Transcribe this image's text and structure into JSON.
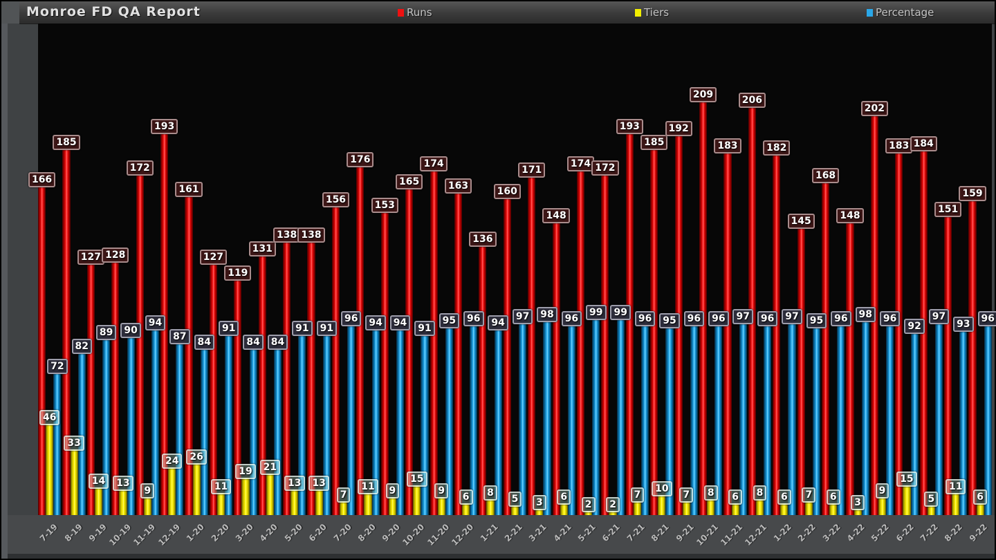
{
  "header": {
    "title": "Monroe FD QA Report",
    "legend": [
      {
        "label": "Runs",
        "color": "#ee1111"
      },
      {
        "label": "Tiers",
        "color": "#f2ee00"
      },
      {
        "label": "Percentage",
        "color": "#2aa7e8"
      }
    ]
  },
  "chart_data": {
    "type": "bar",
    "title": "Monroe FD QA Report",
    "xlabel": "",
    "ylabel": "",
    "grid": false,
    "legend_position": "top",
    "value_labels": true,
    "ylim": [
      0,
      248
    ],
    "categories": [
      "7-19",
      "8-19",
      "9-19",
      "10-19",
      "11-19",
      "12-19",
      "1-20",
      "2-20",
      "3-20",
      "4-20",
      "5-20",
      "6-20",
      "7-20",
      "8-20",
      "9-20",
      "10-20",
      "11-20",
      "12-20",
      "1-21",
      "2-21",
      "3-21",
      "4-21",
      "5-21",
      "6-21",
      "7-21",
      "8-21",
      "9-21",
      "10-21",
      "11-21",
      "12-21",
      "1-22",
      "2-22",
      "3-22",
      "4-22",
      "5-22",
      "6-22",
      "7-22",
      "8-22",
      "9-22"
    ],
    "series": [
      {
        "name": "Runs",
        "color": "#ee1111",
        "values": [
          166,
          185,
          127,
          128,
          172,
          193,
          161,
          127,
          119,
          131,
          138,
          138,
          156,
          176,
          153,
          165,
          174,
          163,
          136,
          160,
          171,
          148,
          174,
          172,
          193,
          185,
          192,
          209,
          183,
          206,
          182,
          145,
          168,
          148,
          202,
          183,
          184,
          151,
          159
        ]
      },
      {
        "name": "Tiers",
        "color": "#f2ee00",
        "values": [
          46,
          33,
          14,
          13,
          9,
          24,
          26,
          11,
          19,
          21,
          13,
          13,
          7,
          11,
          9,
          15,
          9,
          6,
          8,
          5,
          3,
          6,
          2,
          2,
          7,
          10,
          7,
          8,
          6,
          8,
          6,
          7,
          6,
          3,
          9,
          15,
          5,
          11,
          6
        ]
      },
      {
        "name": "Percentage",
        "color": "#2aa7e8",
        "values": [
          72,
          82,
          89,
          90,
          94,
          87,
          84,
          91,
          84,
          84,
          91,
          91,
          96,
          94,
          94,
          91,
          95,
          96,
          94,
          97,
          98,
          96,
          99,
          99,
          96,
          95,
          96,
          96,
          97,
          96,
          97,
          95,
          96,
          98,
          96,
          92,
          97,
          93,
          96
        ]
      }
    ]
  }
}
